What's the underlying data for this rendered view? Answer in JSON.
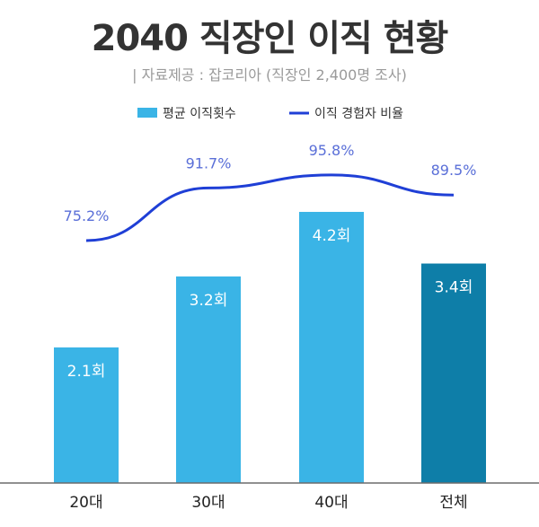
{
  "title": "2040 직장인 이직 현황",
  "subtitle": "| 자료제공 : 잡코리아 (직장인 2,400명 조사)",
  "colors": {
    "bar": "#3ab4e6",
    "bar_total": "#0e7ea8",
    "line": "#1f3fd6",
    "value_text": "#5a6fd8",
    "baseline": "#6b6b6b"
  },
  "chart_data": {
    "type": "bar",
    "categories": [
      "20대",
      "30대",
      "40대",
      "전체"
    ],
    "series": [
      {
        "name": "평균 이직횟수",
        "type": "bar",
        "values": [
          2.1,
          3.2,
          4.2,
          3.4
        ],
        "labels": [
          "2.1회",
          "3.2회",
          "4.2회",
          "3.4회"
        ]
      },
      {
        "name": "이직 경험자 비율",
        "type": "line",
        "values": [
          75.2,
          91.7,
          95.8,
          89.5
        ],
        "labels": [
          "75.2%",
          "91.7%",
          "95.8%",
          "89.5%"
        ]
      }
    ],
    "legend_position": "top-center",
    "grid": false
  }
}
